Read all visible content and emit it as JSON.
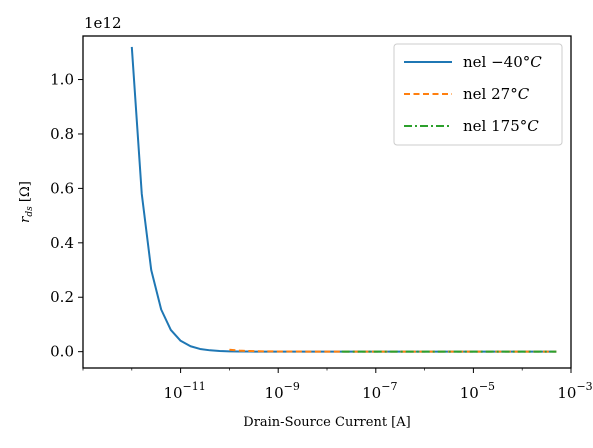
{
  "chart_data": {
    "type": "line",
    "title": "",
    "xlabel": "Drain-Source Current [A]",
    "ylabel_main": "r",
    "ylabel_sub": "ds",
    "ylabel_unit": "[Ω]",
    "y_offset_text": "1e12",
    "xscale": "log",
    "xlim": [
      1e-13,
      0.001
    ],
    "ylim": [
      -0.06,
      1.16
    ],
    "y_multiplier": 1000000000000,
    "x_tick_values": [
      1e-11,
      1e-09,
      1e-07,
      1e-05,
      0.001
    ],
    "x_tick_labels": [
      {
        "base": "10",
        "exp": "−11"
      },
      {
        "base": "10",
        "exp": "−9"
      },
      {
        "base": "10",
        "exp": "−7"
      },
      {
        "base": "10",
        "exp": "−5"
      },
      {
        "base": "10",
        "exp": "−3"
      }
    ],
    "y_tick_values": [
      0.0,
      0.2,
      0.4,
      0.6,
      0.8,
      1.0
    ],
    "y_tick_labels": [
      "0.0",
      "0.2",
      "0.4",
      "0.6",
      "0.8",
      "1.0"
    ],
    "grid": false,
    "legend_position": "top-right",
    "series": [
      {
        "name_prefix": "nel ",
        "name_temp": "−40°",
        "name_unit": "C",
        "color": "#1f77b4",
        "style": "solid",
        "x": [
          1e-12,
          1.6e-12,
          2.5e-12,
          4e-12,
          6.3e-12,
          1e-11,
          1.6e-11,
          2.5e-11,
          4e-11,
          6.3e-11,
          1e-10,
          1.6e-10,
          2.5e-10,
          4e-10,
          1e-09,
          1e-08,
          1e-07,
          1e-06,
          1e-05,
          0.0001,
          0.0005
        ],
        "y": [
          1.12,
          0.58,
          0.3,
          0.155,
          0.08,
          0.04,
          0.02,
          0.01,
          0.005,
          0.0025,
          0.0013,
          0.0007,
          0.0004,
          0.0002,
          0.0001,
          1e-05,
          1e-06,
          1e-07,
          0.0,
          0.0,
          0.0
        ]
      },
      {
        "name_prefix": "nel ",
        "name_temp": "27°",
        "name_unit": "C",
        "color": "#ff7f0e",
        "style": "dashed",
        "x": [
          1e-10,
          1.6e-10,
          2.5e-10,
          4e-10,
          1e-09,
          1e-08,
          1e-07,
          1e-06,
          1e-05,
          0.0001,
          0.0005
        ],
        "y": [
          0.007,
          0.004,
          0.0025,
          0.0015,
          0.0007,
          7e-05,
          7e-06,
          7e-07,
          0.0,
          0.0,
          0.0
        ]
      },
      {
        "name_prefix": "nel ",
        "name_temp": "175°",
        "name_unit": "C",
        "color": "#2ca02c",
        "style": "dashdot",
        "x": [
          2e-08,
          1e-07,
          1e-06,
          1e-05,
          0.0001,
          0.0005
        ],
        "y": [
          0.0003,
          6e-05,
          6e-06,
          6e-07,
          0.0,
          0.0
        ]
      }
    ]
  }
}
